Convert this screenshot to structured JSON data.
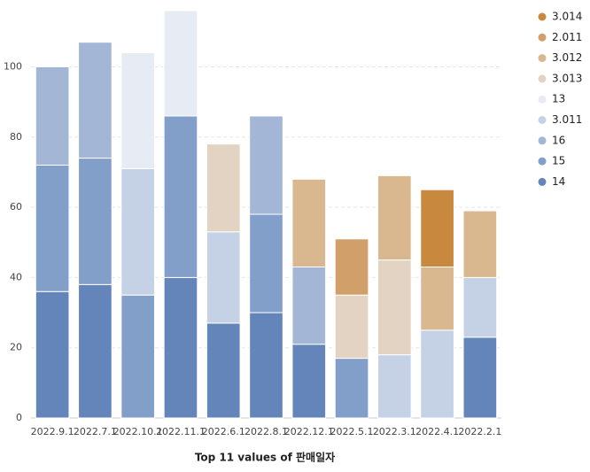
{
  "chart_data": {
    "type": "stacked_bar",
    "x_label": "Top 11 values of 판매일자",
    "categories": [
      "2022.9.1",
      "2022.7.1",
      "2022.10.1",
      "2022.11.1",
      "2022.6.1",
      "2022.8.1",
      "2022.12.1",
      "2022.5.1",
      "2022.3.1",
      "2022.4.1",
      "2022.2.1"
    ],
    "series": [
      {
        "name": "3.014",
        "color": "#c8893f",
        "values": [
          null,
          null,
          null,
          null,
          null,
          null,
          null,
          null,
          null,
          22,
          null
        ]
      },
      {
        "name": "2.011",
        "color": "#d1a06a",
        "values": [
          null,
          null,
          null,
          null,
          null,
          null,
          null,
          16,
          null,
          null,
          null
        ]
      },
      {
        "name": "3.012",
        "color": "#d9b78f",
        "values": [
          null,
          null,
          null,
          null,
          null,
          null,
          25,
          null,
          24,
          18,
          19
        ]
      },
      {
        "name": "3.013",
        "color": "#e2d3c2",
        "values": [
          null,
          null,
          null,
          null,
          25,
          null,
          null,
          18,
          27,
          null,
          null
        ]
      },
      {
        "name": "13",
        "color": "#e7ebf4",
        "values": [
          null,
          null,
          33,
          30,
          null,
          null,
          null,
          null,
          null,
          null,
          null
        ]
      },
      {
        "name": "3.011",
        "color": "#c5d2e6",
        "values": [
          null,
          null,
          36,
          null,
          26,
          null,
          null,
          null,
          18,
          25,
          17
        ]
      },
      {
        "name": "16",
        "color": "#a3b6d6",
        "values": [
          28,
          33,
          null,
          null,
          null,
          28,
          22,
          null,
          null,
          null,
          null
        ]
      },
      {
        "name": "15",
        "color": "#829fca",
        "values": [
          36,
          36,
          35,
          46,
          null,
          28,
          null,
          17,
          null,
          null,
          null
        ]
      },
      {
        "name": "14",
        "color": "#6485ba",
        "values": [
          36,
          38,
          null,
          40,
          27,
          30,
          21,
          null,
          null,
          null,
          23
        ]
      }
    ],
    "ylim": [
      0,
      116
    ],
    "yticks": [
      0,
      20,
      40,
      60,
      80,
      100
    ],
    "grid": true,
    "legend": "right"
  }
}
